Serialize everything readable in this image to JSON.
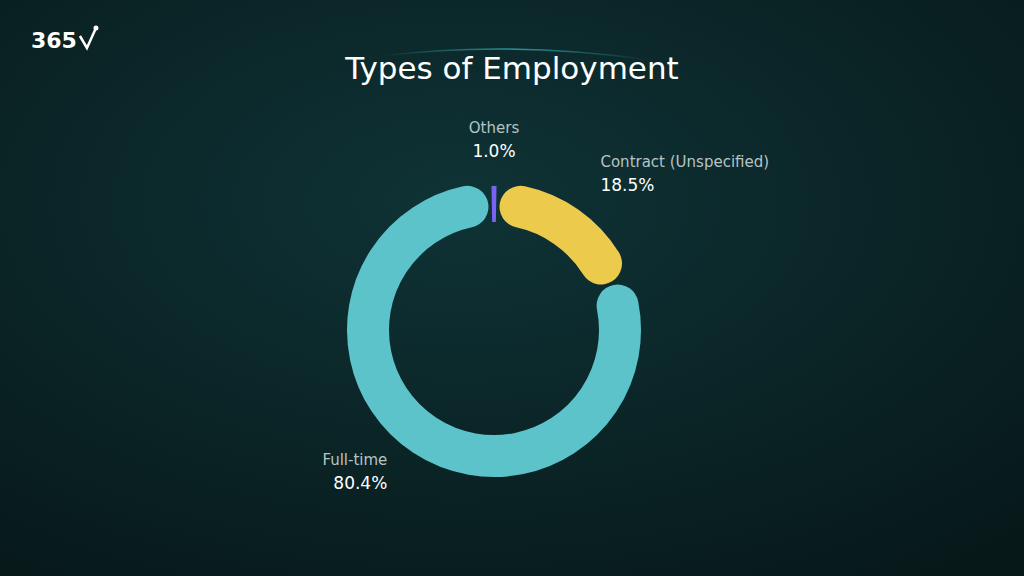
{
  "chart_data": {
    "type": "pie",
    "title": "Types of Employment",
    "annotations": [
      "365"
    ],
    "categories": [
      "Others",
      "Contract (Unspecified)",
      "Full-time"
    ],
    "values": [
      1.0,
      18.5,
      80.4
    ],
    "value_labels": [
      "1.0%",
      "18.5%",
      "80.4%"
    ],
    "colors": [
      "#7a63f0",
      "#eccb4c",
      "#5cc3cb"
    ],
    "data_labels": true
  }
}
